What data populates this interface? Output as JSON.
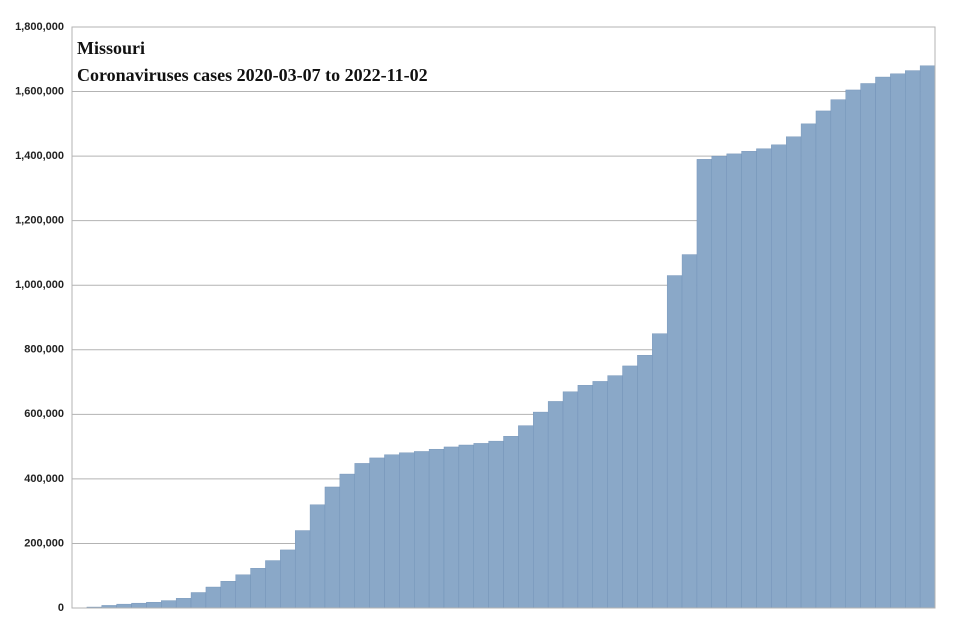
{
  "chart_data": {
    "type": "bar",
    "title": "Missouri",
    "subtitle": "Coronaviruses cases 2020-03-07 to 2022-11-02",
    "categories": [
      null,
      null,
      null,
      null,
      null,
      null,
      null,
      null,
      null,
      null,
      null,
      null,
      null,
      null,
      null,
      null,
      null,
      null,
      null,
      null,
      null,
      null,
      null,
      null,
      null,
      null,
      null,
      null,
      null,
      null,
      null,
      null,
      null,
      null,
      null,
      null,
      null,
      null,
      null,
      null,
      null,
      null,
      null,
      null,
      null,
      null,
      null,
      null,
      null,
      null,
      null,
      null,
      null,
      null,
      null,
      null,
      null,
      null
    ],
    "values": [
      0,
      3000,
      8000,
      12000,
      15000,
      18000,
      23000,
      30000,
      48000,
      65000,
      83000,
      103000,
      123000,
      147000,
      180000,
      240000,
      320000,
      375000,
      415000,
      448000,
      465000,
      475000,
      481000,
      485000,
      492000,
      499000,
      505000,
      510000,
      517000,
      532000,
      565000,
      607000,
      640000,
      670000,
      690000,
      702000,
      720000,
      750000,
      783000,
      850000,
      1030000,
      1095000,
      1390000,
      1400000,
      1407000,
      1415000,
      1423000,
      1435000,
      1460000,
      1500000,
      1540000,
      1575000,
      1605000,
      1625000,
      1645000,
      1655000,
      1665000,
      1680000
    ],
    "color": "#8aa8c8",
    "ylim": [
      0,
      1800000
    ],
    "yticks": [
      0,
      {
        "value": 200000,
        "label": "200,000"
      },
      {
        "value": 400000,
        "label": "400,000"
      },
      {
        "value": 600000,
        "label": "600,000"
      },
      {
        "value": 800000,
        "label": "800,000"
      },
      {
        "value": 1000000,
        "label": "1,000,000"
      },
      {
        "value": 1200000,
        "label": "1,200,000"
      },
      {
        "value": 1400000,
        "label": "1,400,000"
      },
      {
        "value": 1600000,
        "label": "1,600,000"
      },
      {
        "value": 1800000,
        "label": "1,800,000"
      }
    ],
    "grid": true
  }
}
